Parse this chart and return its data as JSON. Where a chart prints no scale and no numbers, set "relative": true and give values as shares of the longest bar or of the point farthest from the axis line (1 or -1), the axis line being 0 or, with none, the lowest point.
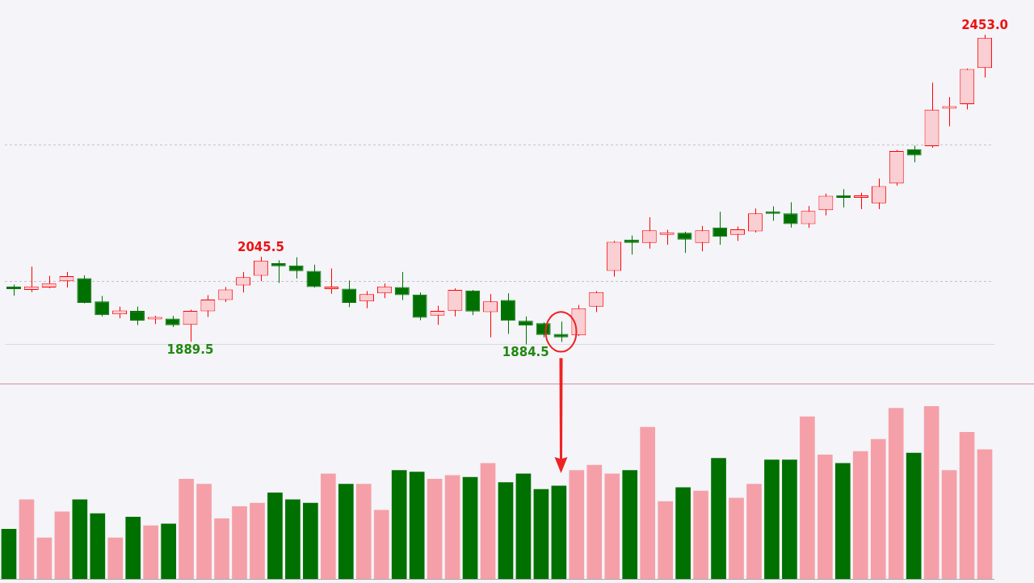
{
  "chart_data": [
    {
      "type": "candlestick",
      "categories": [
        null,
        null,
        null,
        null,
        null,
        null,
        null,
        null,
        null,
        null,
        null,
        null,
        null,
        null,
        null,
        null,
        null,
        null,
        null,
        null,
        null,
        null,
        null,
        null,
        null,
        null,
        null,
        null,
        null,
        null,
        null,
        null,
        null,
        null,
        null,
        null,
        null,
        null,
        null,
        null,
        null,
        null,
        null,
        null,
        null,
        null,
        null,
        null,
        null,
        null,
        null,
        null,
        null,
        null,
        null,
        null
      ],
      "ohlc": [
        [
          1987,
          1994.5,
          1974,
          1986
        ],
        [
          1984.5,
          2027.5,
          1980.5,
          1991
        ],
        [
          1989,
          2010.5,
          1987.5,
          1997
        ],
        [
          2000.5,
          2017.5,
          1989,
          2010
        ],
        [
          2006,
          2011.5,
          1960,
          1961
        ],
        [
          1963.5,
          1973.5,
          1936,
          1938.5
        ],
        [
          1940,
          1954,
          1932.5,
          1947
        ],
        [
          1946,
          1954,
          1920,
          1928.5
        ],
        [
          1930.5,
          1937,
          1922,
          1932
        ],
        [
          1932,
          1937,
          1916.5,
          1920
        ],
        [
          1920.5,
          1948.5,
          1889.5,
          1946
        ],
        [
          1945.5,
          1975,
          1935,
          1967
        ],
        [
          1966,
          1990,
          1962.5,
          1985.5
        ],
        [
          1993,
          2017.5,
          1980,
          2008
        ],
        [
          2010.5,
          2045.5,
          2001,
          2038.5
        ],
        [
          2033.5,
          2039,
          1997.5,
          2028
        ],
        [
          2029.5,
          2044.5,
          2005.5,
          2019
        ],
        [
          2019.5,
          2031,
          1989,
          1990
        ],
        [
          1986,
          2024,
          1977.5,
          1987
        ],
        [
          1987,
          2002,
          1953,
          1961
        ],
        [
          1963.5,
          1982.5,
          1951,
          1977
        ],
        [
          1978.5,
          1996.5,
          1969.5,
          1991
        ],
        [
          1990,
          2017.5,
          1966,
          1975
        ],
        [
          1976,
          1980,
          1929,
          1933.5
        ],
        [
          1937.5,
          1955.5,
          1920.5,
          1946
        ],
        [
          1946.5,
          1987.5,
          1936,
          1984.5
        ],
        [
          1983.5,
          1984.5,
          1938.5,
          1945
        ],
        [
          1944,
          1977,
          1897.5,
          1963.5
        ],
        [
          1966,
          1978.5,
          1904,
          1928
        ],
        [
          1928,
          1936,
          1884.5,
          1919
        ],
        [
          1923.5,
          1925,
          1897.5,
          1902
        ],
        [
          1904,
          1926.5,
          1889,
          1897.5
        ],
        [
          1901.5,
          1957,
          1900,
          1951
        ],
        [
          1954,
          1982.5,
          1944,
          1980.5
        ],
        [
          2019.5,
          2074.5,
          2009,
          2073
        ],
        [
          2077,
          2084.5,
          2049.5,
          2071
        ],
        [
          2071,
          2118,
          2060.5,
          2094
        ],
        [
          2086,
          2095,
          2067.5,
          2088.5
        ],
        [
          2089.5,
          2091.5,
          2052.5,
          2077
        ],
        [
          2071,
          2102,
          2055.5,
          2094
        ],
        [
          2099,
          2128,
          2067.5,
          2082
        ],
        [
          2086,
          2101,
          2074.5,
          2096
        ],
        [
          2092,
          2134,
          2090,
          2125
        ],
        [
          2127,
          2138,
          2111.5,
          2124.5
        ],
        [
          2125,
          2145.5,
          2099,
          2105.5
        ],
        [
          2105.5,
          2138.5,
          2098.5,
          2129.5
        ],
        [
          2131,
          2161.5,
          2121.5,
          2157.5
        ],
        [
          2158.5,
          2169.5,
          2136,
          2153.5
        ],
        [
          2153.5,
          2163,
          2133,
          2156.5
        ],
        [
          2143.5,
          2189,
          2133,
          2175
        ],
        [
          2180,
          2241.5,
          2176,
          2239.5
        ],
        [
          2243,
          2249.5,
          2219,
          2231.5
        ],
        [
          2248.5,
          2365,
          2245.5,
          2315.5
        ],
        [
          2317.5,
          2338.5,
          2285,
          2319.5
        ],
        [
          2325.5,
          2391,
          2316,
          2390
        ],
        [
          2392,
          2453,
          2374.5,
          2447.5
        ]
      ],
      "colors": [
        "#007000",
        "#ff0000",
        "#ff0000",
        "#ff0000",
        "#007000",
        "#007000",
        "#ff0000",
        "#007000",
        "#ff0000",
        "#007000",
        "#ff0000",
        "#ff0000",
        "#ff0000",
        "#ff0000",
        "#ff0000",
        "#007000",
        "#007000",
        "#007000",
        "#ff0000",
        "#007000",
        "#ff0000",
        "#ff0000",
        "#007000",
        "#007000",
        "#ff0000",
        "#ff0000",
        "#007000",
        "#ff0000",
        "#007000",
        "#007000",
        "#007000",
        "#007000",
        "#ff0000",
        "#ff0000",
        "#ff0000",
        "#007000",
        "#ff0000",
        "#ff0000",
        "#007000",
        "#ff0000",
        "#007000",
        "#ff0000",
        "#ff0000",
        "#007000",
        "#007000",
        "#ff0000",
        "#ff0000",
        "#007000",
        "#ff0000",
        "#ff0000",
        "#ff0000",
        "#007000",
        "#ff0000",
        "#ff0000",
        "#ff0000",
        "#ff0000"
      ],
      "yticks": [
        {
          "value": 2000,
          "label": null
        },
        {
          "value": 2250,
          "label": null
        }
      ],
      "grid": "y",
      "annotations": [
        {
          "text": "2045.5",
          "y": 2045.5
        },
        {
          "text": "1889.5",
          "y": 1889.5
        },
        {
          "text": "1884.5",
          "y": 1884.5
        },
        {
          "text": "2453.0",
          "y": 2453
        }
      ]
    },
    {
      "type": "bar",
      "relative": true,
      "categories": [
        null,
        null,
        null,
        null,
        null,
        null,
        null,
        null,
        null,
        null,
        null,
        null,
        null,
        null,
        null,
        null,
        null,
        null,
        null,
        null,
        null,
        null,
        null,
        null,
        null,
        null,
        null,
        null,
        null,
        null,
        null,
        null,
        null,
        null,
        null,
        null,
        null,
        null,
        null,
        null,
        null,
        null,
        null,
        null,
        null,
        null,
        null,
        null,
        null,
        null,
        null,
        null,
        null,
        null,
        null,
        null
      ],
      "values": [
        0.29,
        0.46,
        0.24,
        0.39,
        0.46,
        0.38,
        0.24,
        0.36,
        0.31,
        0.32,
        0.58,
        0.55,
        0.35,
        0.42,
        0.44,
        0.5,
        0.46,
        0.44,
        0.61,
        0.55,
        0.55,
        0.4,
        0.63,
        0.62,
        0.58,
        0.6,
        0.59,
        0.67,
        0.56,
        0.61,
        0.52,
        0.54,
        0.63,
        0.66,
        0.61,
        0.63,
        0.88,
        0.45,
        0.53,
        0.51,
        0.7,
        0.47,
        0.55,
        0.69,
        0.69,
        0.94,
        0.72,
        0.67,
        0.74,
        0.81,
        0.99,
        0.73,
        1,
        0.63,
        0.85,
        0.75
      ],
      "colors": [
        "#007000",
        "#f5a0a8",
        "#f5a0a8",
        "#f5a0a8",
        "#007000",
        "#007000",
        "#f5a0a8",
        "#007000",
        "#f5a0a8",
        "#007000",
        "#f5a0a8",
        "#f5a0a8",
        "#f5a0a8",
        "#f5a0a8",
        "#f5a0a8",
        "#007000",
        "#007000",
        "#007000",
        "#f5a0a8",
        "#007000",
        "#f5a0a8",
        "#f5a0a8",
        "#007000",
        "#007000",
        "#f5a0a8",
        "#f5a0a8",
        "#007000",
        "#f5a0a8",
        "#007000",
        "#007000",
        "#007000",
        "#007000",
        "#f5a0a8",
        "#f5a0a8",
        "#f5a0a8",
        "#007000",
        "#f5a0a8",
        "#f5a0a8",
        "#007000",
        "#f5a0a8",
        "#007000",
        "#f5a0a8",
        "#f5a0a8",
        "#007000",
        "#007000",
        "#f5a0a8",
        "#f5a0a8",
        "#007000",
        "#f5a0a8",
        "#f5a0a8",
        "#f5a0a8",
        "#007000",
        "#f5a0a8",
        "#f5a0a8",
        "#f5a0a8",
        "#f5a0a8"
      ]
    }
  ]
}
